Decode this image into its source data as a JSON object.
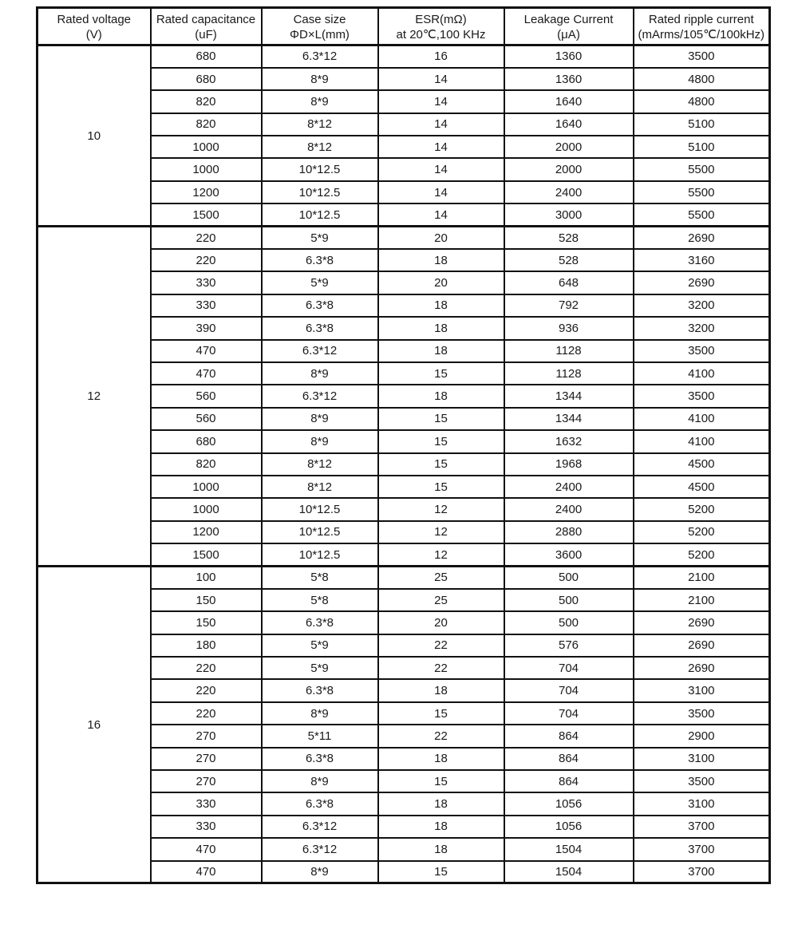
{
  "colors": {
    "background": "#ffffff",
    "border": "#111111",
    "text": "#1a1a1a"
  },
  "table": {
    "headers": [
      {
        "id": "voltage",
        "line1": "Rated voltage",
        "line2": "(V)"
      },
      {
        "id": "capacitance",
        "line1": "Rated capacitance",
        "line2": "(uF)"
      },
      {
        "id": "case-size",
        "line1": "Case  size",
        "line2": "ΦD×L(mm)"
      },
      {
        "id": "esr",
        "line1": "ESR(mΩ)",
        "line2": "at 20℃,100 KHz"
      },
      {
        "id": "leakage",
        "line1": "Leakage Current",
        "line2": "(μA)"
      },
      {
        "id": "ripple",
        "line1": "Rated ripple current",
        "line2": "(mArms/105℃/100kHz)"
      }
    ],
    "groups": [
      {
        "voltage": "10",
        "rows": [
          [
            "680",
            "6.3*12",
            "16",
            "1360",
            "3500"
          ],
          [
            "680",
            "8*9",
            "14",
            "1360",
            "4800"
          ],
          [
            "820",
            "8*9",
            "14",
            "1640",
            "4800"
          ],
          [
            "820",
            "8*12",
            "14",
            "1640",
            "5100"
          ],
          [
            "1000",
            "8*12",
            "14",
            "2000",
            "5100"
          ],
          [
            "1000",
            "10*12.5",
            "14",
            "2000",
            "5500"
          ],
          [
            "1200",
            "10*12.5",
            "14",
            "2400",
            "5500"
          ],
          [
            "1500",
            "10*12.5",
            "14",
            "3000",
            "5500"
          ]
        ]
      },
      {
        "voltage": "12",
        "rows": [
          [
            "220",
            "5*9",
            "20",
            "528",
            "2690"
          ],
          [
            "220",
            "6.3*8",
            "18",
            "528",
            "3160"
          ],
          [
            "330",
            "5*9",
            "20",
            "648",
            "2690"
          ],
          [
            "330",
            "6.3*8",
            "18",
            "792",
            "3200"
          ],
          [
            "390",
            "6.3*8",
            "18",
            "936",
            "3200"
          ],
          [
            "470",
            "6.3*12",
            "18",
            "1128",
            "3500"
          ],
          [
            "470",
            "8*9",
            "15",
            "1128",
            "4100"
          ],
          [
            "560",
            "6.3*12",
            "18",
            "1344",
            "3500"
          ],
          [
            "560",
            "8*9",
            "15",
            "1344",
            "4100"
          ],
          [
            "680",
            "8*9",
            "15",
            "1632",
            "4100"
          ],
          [
            "820",
            "8*12",
            "15",
            "1968",
            "4500"
          ],
          [
            "1000",
            "8*12",
            "15",
            "2400",
            "4500"
          ],
          [
            "1000",
            "10*12.5",
            "12",
            "2400",
            "5200"
          ],
          [
            "1200",
            "10*12.5",
            "12",
            "2880",
            "5200"
          ],
          [
            "1500",
            "10*12.5",
            "12",
            "3600",
            "5200"
          ]
        ]
      },
      {
        "voltage": "16",
        "rows": [
          [
            "100",
            "5*8",
            "25",
            "500",
            "2100"
          ],
          [
            "150",
            "5*8",
            "25",
            "500",
            "2100"
          ],
          [
            "150",
            "6.3*8",
            "20",
            "500",
            "2690"
          ],
          [
            "180",
            "5*9",
            "22",
            "576",
            "2690"
          ],
          [
            "220",
            "5*9",
            "22",
            "704",
            "2690"
          ],
          [
            "220",
            "6.3*8",
            "18",
            "704",
            "3100"
          ],
          [
            "220",
            "8*9",
            "15",
            "704",
            "3500"
          ],
          [
            "270",
            "5*11",
            "22",
            "864",
            "2900"
          ],
          [
            "270",
            "6.3*8",
            "18",
            "864",
            "3100"
          ],
          [
            "270",
            "8*9",
            "15",
            "864",
            "3500"
          ],
          [
            "330",
            "6.3*8",
            "18",
            "1056",
            "3100"
          ],
          [
            "330",
            "6.3*12",
            "18",
            "1056",
            "3700"
          ],
          [
            "470",
            "6.3*12",
            "18",
            "1504",
            "3700"
          ],
          [
            "470",
            "8*9",
            "15",
            "1504",
            "3700"
          ]
        ]
      }
    ]
  }
}
